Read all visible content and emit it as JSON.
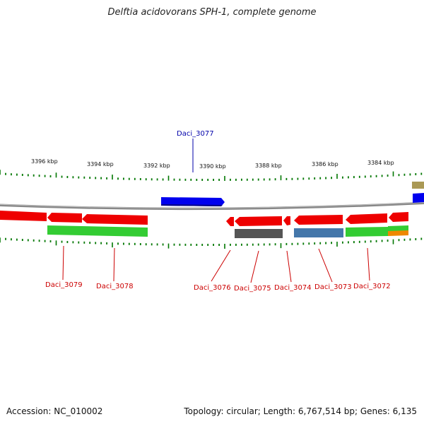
{
  "title": "Delftia acidovorans SPH-1, complete genome",
  "footer": {
    "accession": "Accession: NC_010002",
    "summary": "Topology: circular; Length: 6,767,514 bp; Genes: 6,135"
  },
  "ruler": {
    "labels": [
      "3396 kbp",
      "3394 kbp",
      "3392 kbp",
      "3390 kbp",
      "3388 kbp",
      "3386 kbp",
      "3384 kbp"
    ]
  },
  "genes": {
    "top_label": "Daci_3077",
    "bottom_labels": [
      "Daci_3079",
      "Daci_3078",
      "Daci_3076",
      "Daci_3075",
      "Daci_3074",
      "Daci_3073",
      "Daci_3072"
    ]
  },
  "colors": {
    "label_forward": "#0000aa",
    "label_reverse": "#cc0000",
    "cds_reverse": "#ee0000",
    "cds_forward": "#0000ee",
    "backbone": "#888888",
    "tick": "#007700",
    "green_band": "#33cc33",
    "grey_band": "#555555",
    "blue_band": "#4477aa",
    "orange_band": "#ee8800",
    "olive_band": "#aa9955"
  }
}
